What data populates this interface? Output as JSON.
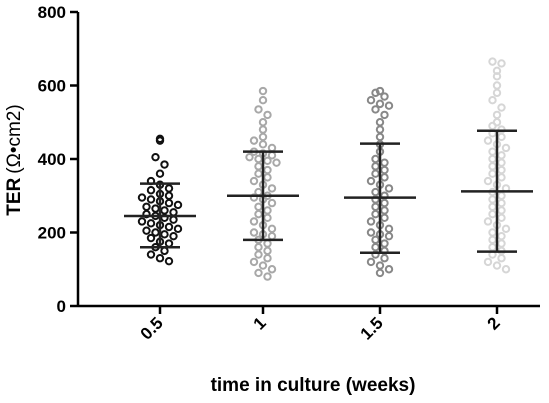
{
  "chart_data": {
    "type": "scatter",
    "xlabel": "time in culture (weeks)",
    "ylabel_main": "TER",
    "ylabel_unit": "(Ω•cm2)",
    "ylim": [
      0,
      800
    ],
    "yticks": [
      0,
      200,
      400,
      600,
      800
    ],
    "grid": false,
    "categories": [
      "0.5",
      "1",
      "1.5",
      "2"
    ],
    "series": [
      {
        "category": "0.5",
        "color": "#111111",
        "mean": 245,
        "sd_low": 160,
        "sd_high": 333,
        "values": [
          455,
          450,
          405,
          385,
          360,
          340,
          330,
          320,
          315,
          305,
          300,
          295,
          290,
          285,
          280,
          275,
          270,
          265,
          260,
          255,
          250,
          245,
          240,
          235,
          230,
          225,
          220,
          215,
          210,
          205,
          200,
          195,
          190,
          185,
          175,
          170,
          160,
          150,
          140,
          130,
          122
        ]
      },
      {
        "category": "1",
        "color": "#a8a8a8",
        "mean": 300,
        "sd_low": 180,
        "sd_high": 420,
        "values": [
          585,
          560,
          535,
          520,
          500,
          480,
          460,
          450,
          440,
          430,
          420,
          415,
          410,
          405,
          400,
          395,
          390,
          380,
          370,
          360,
          350,
          340,
          330,
          320,
          310,
          300,
          295,
          290,
          280,
          270,
          260,
          250,
          240,
          230,
          220,
          210,
          200,
          195,
          190,
          180,
          170,
          160,
          150,
          140,
          130,
          120,
          110,
          100,
          90,
          80
        ]
      },
      {
        "category": "1.5",
        "color": "#888888",
        "mean": 295,
        "sd_low": 145,
        "sd_high": 442,
        "values": [
          585,
          580,
          570,
          560,
          550,
          545,
          535,
          520,
          500,
          480,
          460,
          440,
          420,
          400,
          390,
          380,
          370,
          360,
          350,
          340,
          330,
          320,
          310,
          300,
          290,
          280,
          270,
          260,
          250,
          240,
          230,
          220,
          210,
          200,
          195,
          190,
          180,
          170,
          160,
          150,
          140,
          130,
          120,
          110,
          100,
          90
        ]
      },
      {
        "category": "2",
        "color": "#d6d6d6",
        "mean": 312,
        "sd_low": 148,
        "sd_high": 477,
        "values": [
          665,
          660,
          640,
          625,
          600,
          580,
          560,
          540,
          520,
          500,
          490,
          480,
          470,
          460,
          450,
          440,
          430,
          420,
          410,
          400,
          390,
          380,
          370,
          360,
          350,
          340,
          330,
          320,
          310,
          300,
          290,
          280,
          270,
          260,
          250,
          240,
          230,
          220,
          210,
          200,
          190,
          180,
          170,
          160,
          150,
          140,
          130,
          120,
          110,
          100
        ]
      }
    ]
  }
}
